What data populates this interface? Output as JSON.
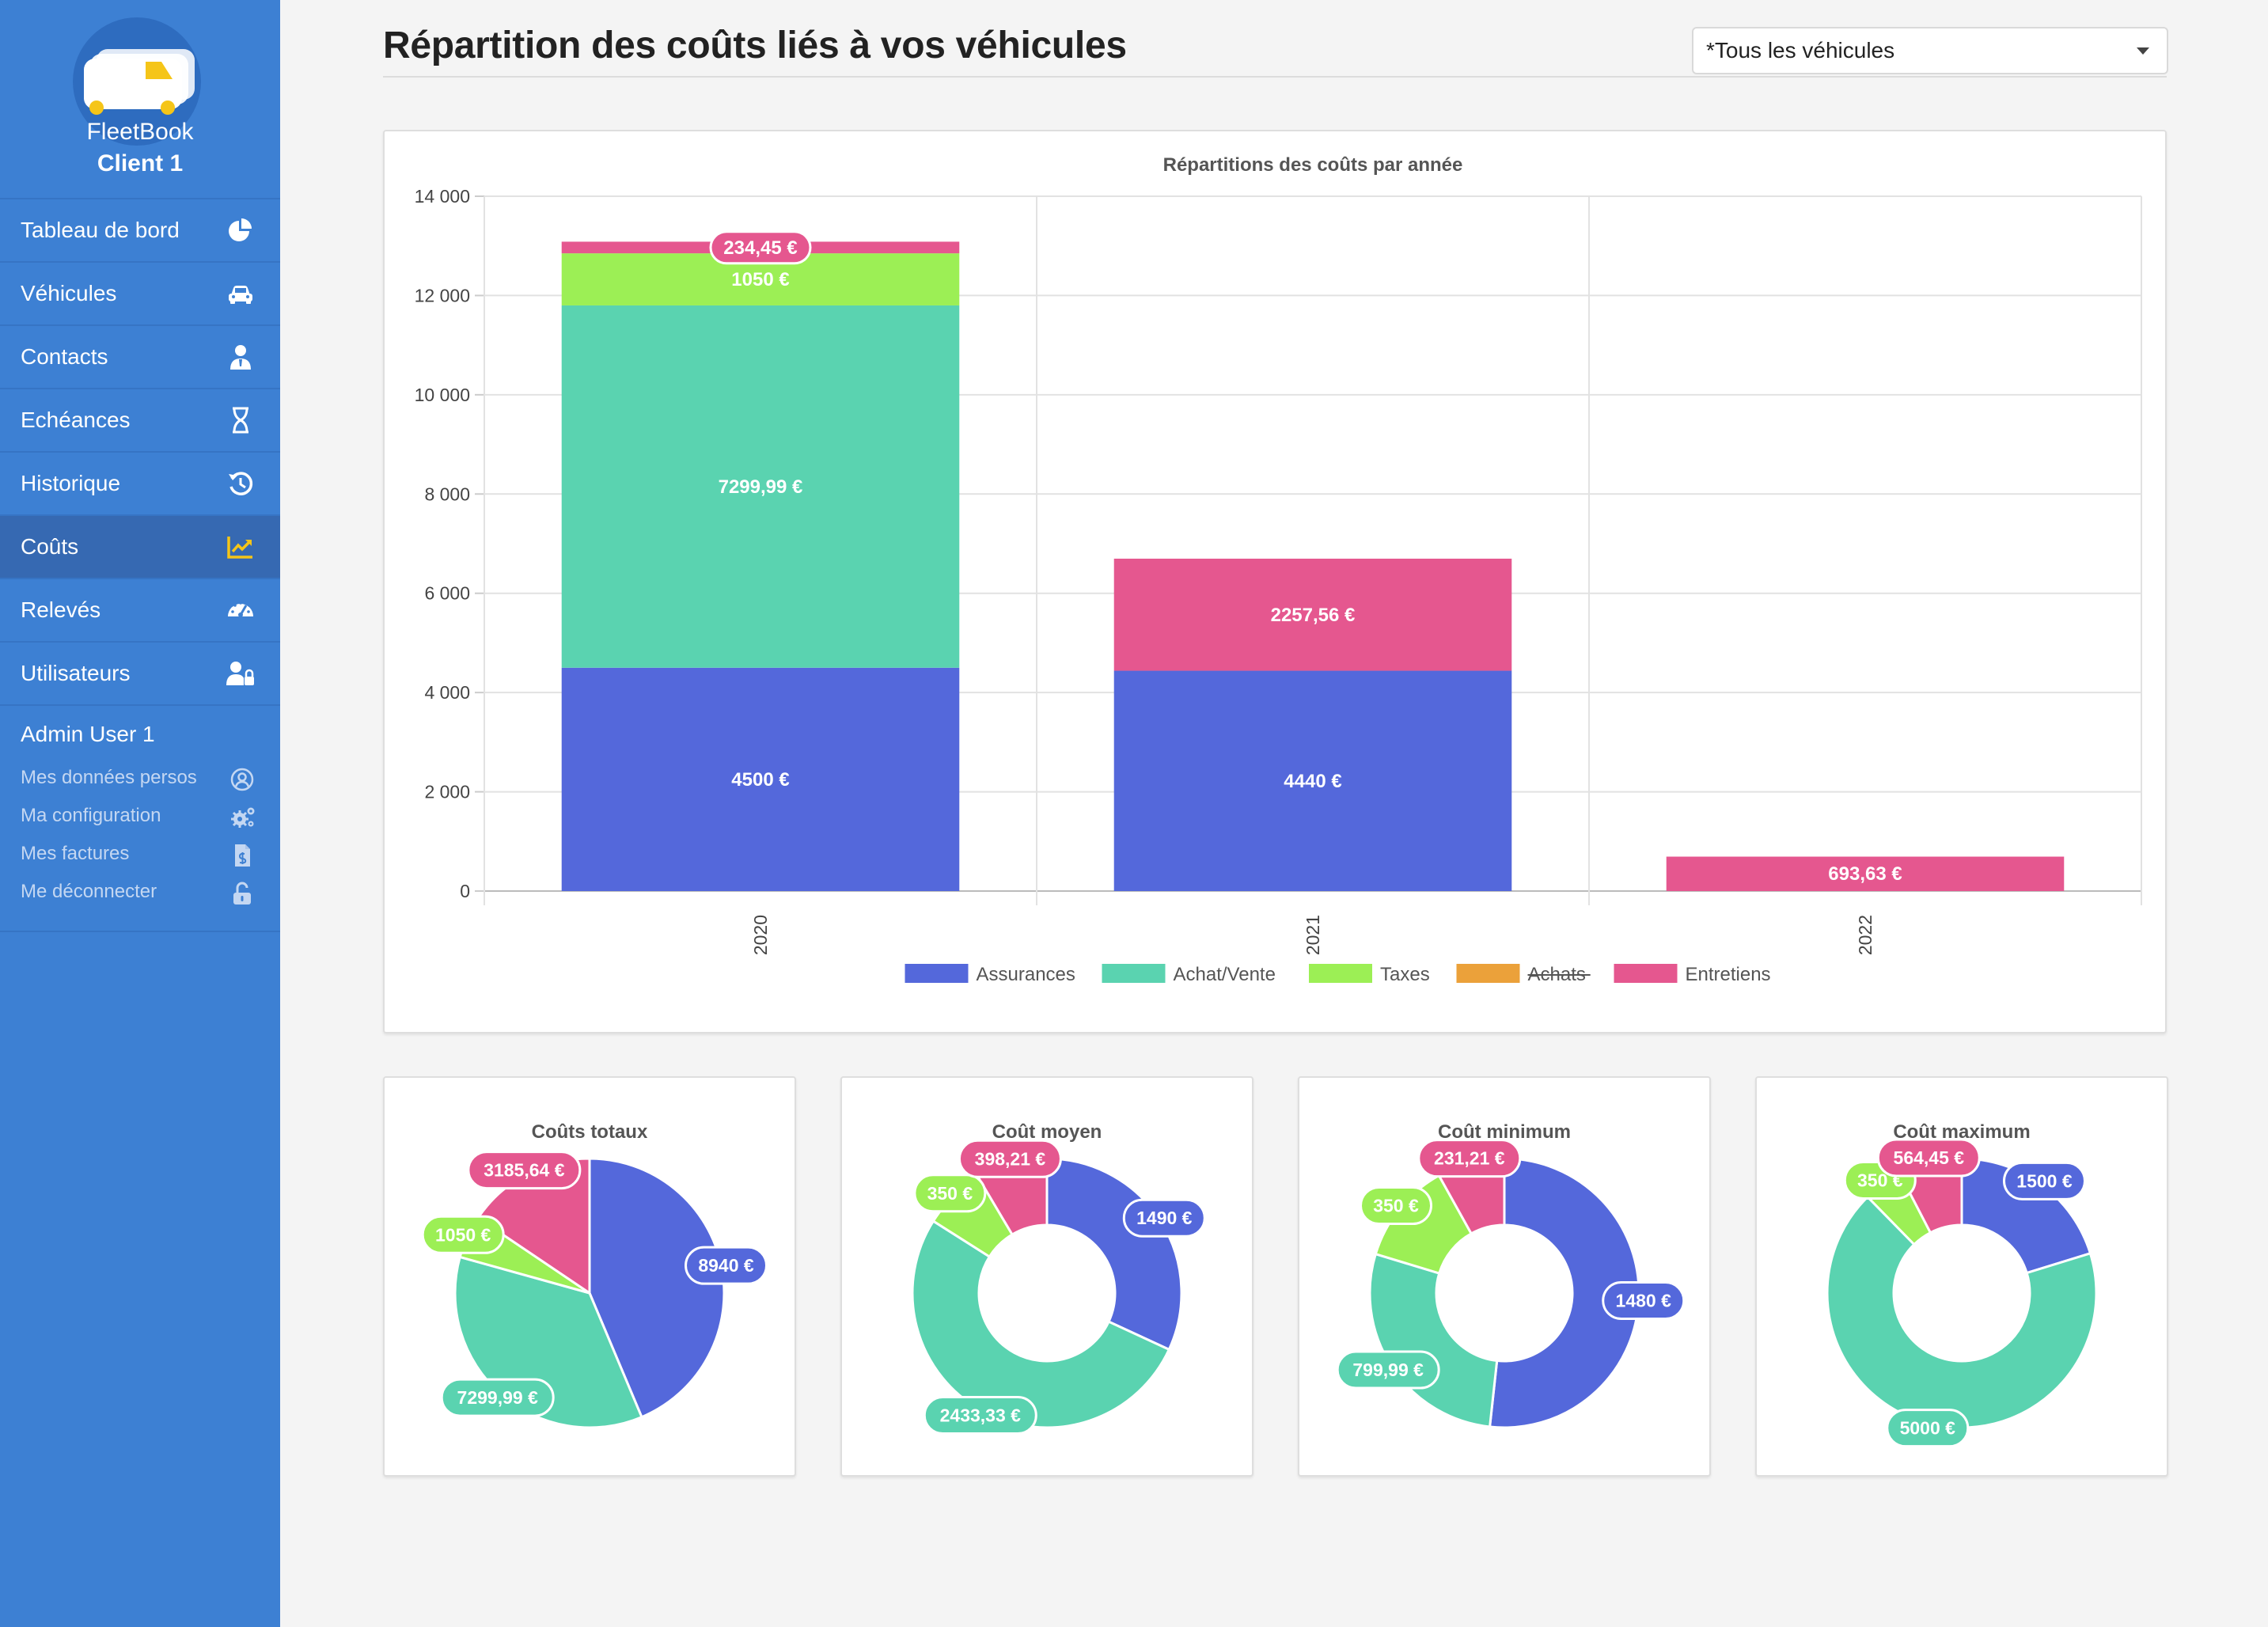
{
  "app": {
    "brand_line1": "FleetBook",
    "brand_line2": "Client 1"
  },
  "sidebar": {
    "items": [
      {
        "label": "Tableau de bord",
        "icon": "pie-chart-icon",
        "active": false
      },
      {
        "label": "Véhicules",
        "icon": "car-icon",
        "active": false
      },
      {
        "label": "Contacts",
        "icon": "person-tie-icon",
        "active": false
      },
      {
        "label": "Echéances",
        "icon": "hourglass-icon",
        "active": false
      },
      {
        "label": "Historique",
        "icon": "history-icon",
        "active": false
      },
      {
        "label": "Coûts",
        "icon": "chart-line-icon",
        "active": true
      },
      {
        "label": "Relevés",
        "icon": "speedometer-icon",
        "active": false
      },
      {
        "label": "Utilisateurs",
        "icon": "user-lock-icon",
        "active": false
      }
    ],
    "user": {
      "name": "Admin User 1"
    },
    "sub_items": [
      {
        "label": "Mes données persos",
        "icon": "user-circle-icon"
      },
      {
        "label": "Ma configuration",
        "icon": "gears-icon"
      },
      {
        "label": "Mes factures",
        "icon": "invoice-icon"
      },
      {
        "label": "Me déconnecter",
        "icon": "unlock-icon"
      }
    ]
  },
  "header": {
    "title": "Répartition des coûts liés à vos véhicules",
    "vehicle_select": {
      "value": "*Tous les véhicules"
    }
  },
  "colors": {
    "assurances": "#5468db",
    "achat_vente": "#5ad3b0",
    "taxes": "#9cef55",
    "achats": "#eba13a",
    "entretiens": "#e5578f",
    "sidebar": "#3d80d3",
    "sidebar_active": "#3669b2",
    "active_icon": "#f5c518"
  },
  "chart_data": [
    {
      "type": "bar",
      "stacked": true,
      "title": "Répartitions des coûts par année",
      "categories": [
        "2020",
        "2021",
        "2022"
      ],
      "ylim": [
        0,
        14000
      ],
      "yticks": [
        "0",
        "2 000",
        "4 000",
        "6 000",
        "8 000",
        "10 000",
        "12 000",
        "14 000"
      ],
      "grid": true,
      "legend_position": "bottom",
      "series": [
        {
          "name": "Assurances",
          "color": "#5468db",
          "values": [
            4500,
            4440,
            0
          ],
          "labels": [
            "4500 €",
            "4440 €",
            ""
          ]
        },
        {
          "name": "Achat/Vente",
          "color": "#5ad3b0",
          "values": [
            7299.99,
            0,
            0
          ],
          "labels": [
            "7299,99 €",
            "",
            ""
          ]
        },
        {
          "name": "Taxes",
          "color": "#9cef55",
          "values": [
            1050,
            0,
            0
          ],
          "labels": [
            "1050 €",
            "",
            ""
          ]
        },
        {
          "name": "Achats",
          "color": "#eba13a",
          "values": [
            0,
            0,
            0
          ],
          "labels": [
            "",
            "",
            ""
          ],
          "hidden": true
        },
        {
          "name": "Entretiens",
          "color": "#e5578f",
          "values": [
            234.45,
            2257.56,
            693.63
          ],
          "labels": [
            "234,45 €",
            "2257,56 €",
            "693,63 €"
          ]
        }
      ]
    },
    {
      "type": "pie",
      "title": "Coûts totaux",
      "donut": false,
      "slices": [
        {
          "series": "Assurances",
          "value": 8940,
          "label": "8940 €",
          "color": "#5468db"
        },
        {
          "series": "Achat/Vente",
          "value": 7299.99,
          "label": "7299,99 €",
          "color": "#5ad3b0"
        },
        {
          "series": "Taxes",
          "value": 1050,
          "label": "1050 €",
          "color": "#9cef55"
        },
        {
          "series": "Entretiens",
          "value": 3185.64,
          "label": "3185,64 €",
          "color": "#e5578f"
        }
      ]
    },
    {
      "type": "pie",
      "title": "Coût moyen",
      "donut": true,
      "slices": [
        {
          "series": "Assurances",
          "value": 1490,
          "label": "1490 €",
          "color": "#5468db"
        },
        {
          "series": "Achat/Vente",
          "value": 2433.33,
          "label": "2433,33 €",
          "color": "#5ad3b0"
        },
        {
          "series": "Taxes",
          "value": 350,
          "label": "350 €",
          "color": "#9cef55"
        },
        {
          "series": "Entretiens",
          "value": 398.21,
          "label": "398,21 €",
          "color": "#e5578f"
        }
      ]
    },
    {
      "type": "pie",
      "title": "Coût minimum",
      "donut": true,
      "slices": [
        {
          "series": "Assurances",
          "value": 1480,
          "label": "1480 €",
          "color": "#5468db"
        },
        {
          "series": "Achat/Vente",
          "value": 799.99,
          "label": "799,99 €",
          "color": "#5ad3b0"
        },
        {
          "series": "Taxes",
          "value": 350,
          "label": "350 €",
          "color": "#9cef55"
        },
        {
          "series": "Entretiens",
          "value": 231.21,
          "label": "231,21 €",
          "color": "#e5578f"
        }
      ]
    },
    {
      "type": "pie",
      "title": "Coût maximum",
      "donut": true,
      "slices": [
        {
          "series": "Assurances",
          "value": 1500,
          "label": "1500 €",
          "color": "#5468db"
        },
        {
          "series": "Achat/Vente",
          "value": 5000,
          "label": "5000 €",
          "color": "#5ad3b0"
        },
        {
          "series": "Taxes",
          "value": 350,
          "label": "350 €",
          "color": "#9cef55"
        },
        {
          "series": "Entretiens",
          "value": 564.45,
          "label": "564,45 €",
          "color": "#e5578f"
        }
      ]
    }
  ]
}
